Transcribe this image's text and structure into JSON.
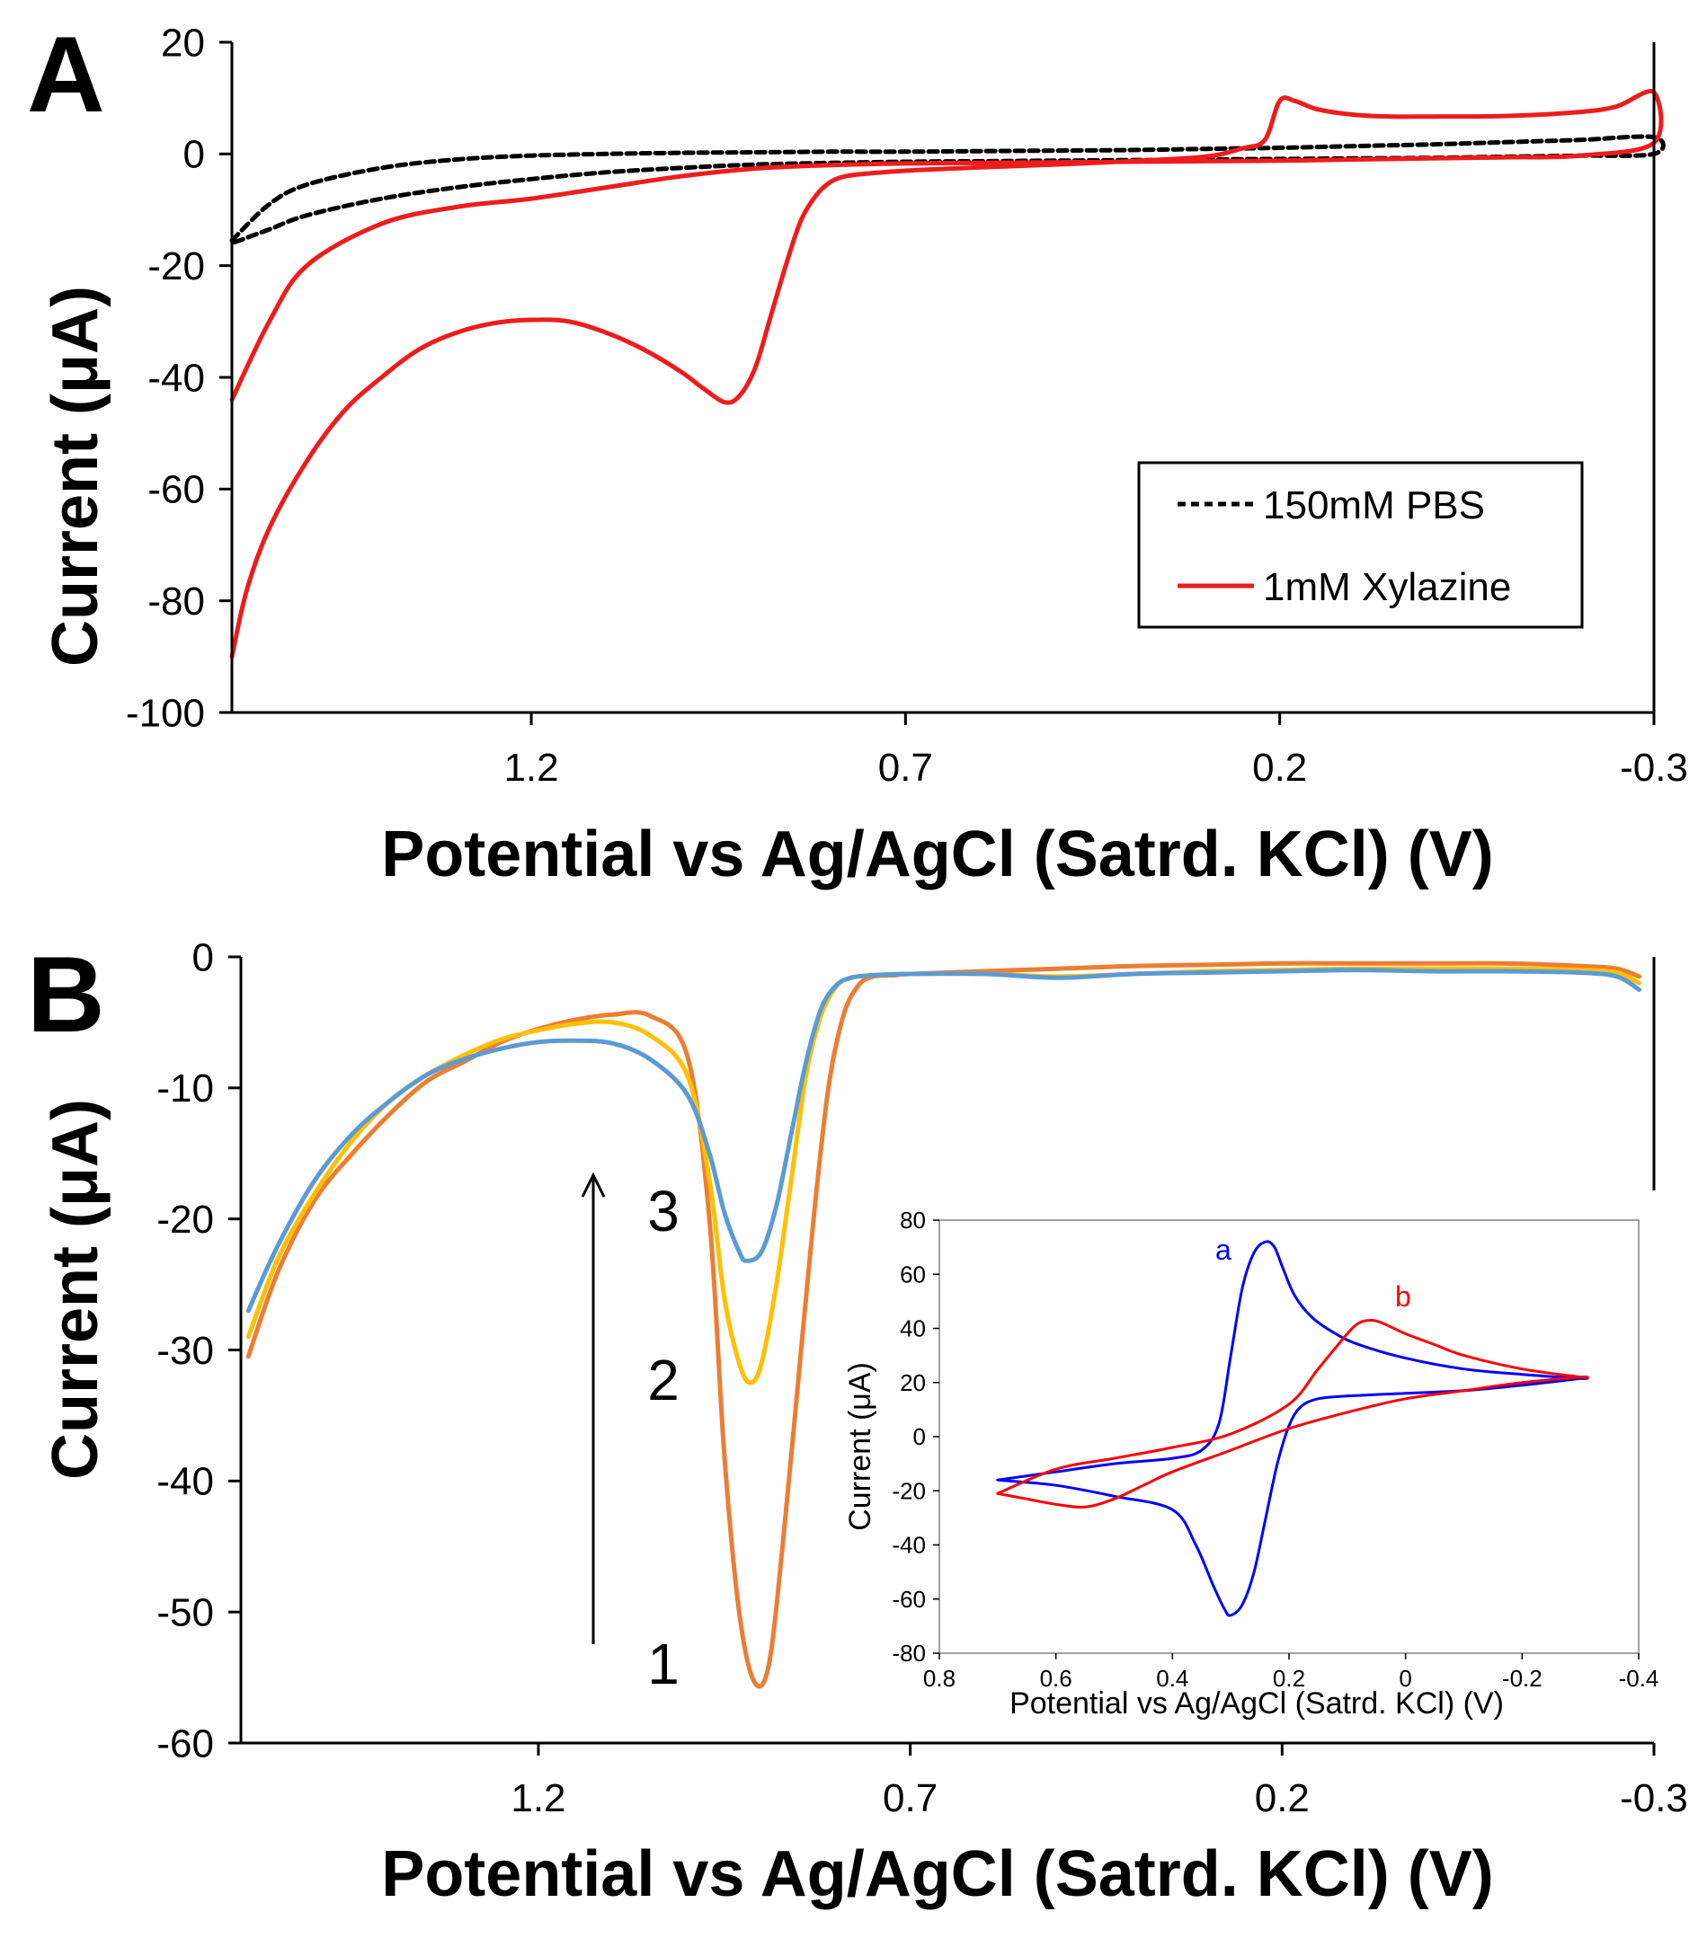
{
  "chart_data": [
    {
      "id": "A",
      "type": "line",
      "panel_label": "A",
      "xlabel": "Potential vs Ag/AgCl (Satrd. KCl) (V)",
      "ylabel": "Current (μA)",
      "xlim": [
        1.6,
        -0.3
      ],
      "ylim": [
        -100,
        20
      ],
      "x_ticks": [
        1.2,
        0.7,
        0.2,
        -0.3
      ],
      "x_tick_labels": [
        "1.2",
        "0.7",
        "0.2",
        "-0.3"
      ],
      "y_ticks": [
        20,
        0,
        -20,
        -40,
        -60,
        -80,
        -100
      ],
      "y_tick_labels": [
        "20",
        "0",
        "-20",
        "-40",
        "-60",
        "-80",
        "-100"
      ],
      "legend": {
        "placement": "bottom-right",
        "entries": [
          "150mM PBS",
          "1mM Xylazine"
        ]
      },
      "series": [
        {
          "name": "150mM PBS",
          "color": "#000000",
          "dash": "dashed",
          "x": [
            1.6,
            1.55,
            1.5,
            1.4,
            1.3,
            1.2,
            1.1,
            1.0,
            0.9,
            0.8,
            0.7,
            0.6,
            0.5,
            0.4,
            0.3,
            0.2,
            0.1,
            0.0,
            -0.1,
            -0.2,
            -0.3,
            -0.3,
            -0.2,
            -0.1,
            0.0,
            0.1,
            0.2,
            0.3,
            0.4,
            0.5,
            0.6,
            0.7,
            0.8,
            0.9,
            1.0,
            1.1,
            1.2,
            1.3,
            1.4,
            1.5,
            1.55,
            1.6
          ],
          "y": [
            -15.5,
            -9,
            -5.5,
            -2.5,
            -1,
            -0.3,
            0,
            0.2,
            0.3,
            0.4,
            0.4,
            0.5,
            0.6,
            0.7,
            0.9,
            1.1,
            1.4,
            1.7,
            2.1,
            2.5,
            3,
            0,
            -0.3,
            -0.5,
            -0.7,
            -0.8,
            -0.9,
            -1,
            -1.1,
            -1.2,
            -1.3,
            -1.4,
            -1.6,
            -1.9,
            -2.5,
            -3.3,
            -4.5,
            -6,
            -8,
            -11,
            -13.5,
            -16
          ]
        },
        {
          "name": "1mM Xylazine",
          "color": "#ee1c1c",
          "dash": "solid",
          "x": [
            1.6,
            1.58,
            1.55,
            1.5,
            1.45,
            1.4,
            1.35,
            1.3,
            1.25,
            1.2,
            1.15,
            1.1,
            1.05,
            1.0,
            0.97,
            0.94,
            0.92,
            0.9,
            0.88,
            0.86,
            0.84,
            0.82,
            0.8,
            0.78,
            0.75,
            0.7,
            0.6,
            0.5,
            0.4,
            0.3,
            0.25,
            0.22,
            0.2,
            0.18,
            0.15,
            0.1,
            0.05,
            0.0,
            -0.1,
            -0.2,
            -0.25,
            -0.3,
            -0.3,
            -0.2,
            -0.1,
            0.0,
            0.1,
            0.2,
            0.3,
            0.4,
            0.5,
            0.6,
            0.7,
            0.8,
            0.9,
            1.0,
            1.1,
            1.2,
            1.3,
            1.4,
            1.5,
            1.55,
            1.6
          ],
          "y": [
            -90,
            -78,
            -67,
            -55,
            -46,
            -40,
            -35,
            -32,
            -30.3,
            -29.7,
            -30,
            -32,
            -35,
            -39,
            -42,
            -44.5,
            -43,
            -38,
            -29,
            -20,
            -12,
            -7.5,
            -5,
            -4,
            -3.5,
            -3,
            -2.4,
            -1.9,
            -1.3,
            -0.5,
            1,
            2.5,
            9.5,
            9.5,
            8,
            7,
            6.7,
            6.7,
            6.8,
            7.5,
            8.5,
            11,
            2,
            -0.3,
            -0.6,
            -0.8,
            -1,
            -1.2,
            -1.3,
            -1.4,
            -1.5,
            -1.6,
            -1.7,
            -2,
            -2.6,
            -4,
            -6,
            -8,
            -9.5,
            -12.5,
            -20,
            -30,
            -44
          ]
        }
      ]
    },
    {
      "id": "B",
      "type": "line",
      "panel_label": "B",
      "xlabel": "Potential vs Ag/AgCl (Satrd. KCl) (V)",
      "ylabel": "Current (μA)",
      "xlim": [
        1.6,
        -0.3
      ],
      "ylim": [
        -60,
        0
      ],
      "x_ticks": [
        1.2,
        0.7,
        0.2,
        -0.3
      ],
      "x_tick_labels": [
        "1.2",
        "0.7",
        "0.2",
        "-0.3"
      ],
      "y_ticks": [
        0,
        -10,
        -20,
        -30,
        -40,
        -50,
        -60
      ],
      "y_tick_labels": [
        "0",
        "-10",
        "-20",
        "-30",
        "-40",
        "-50",
        "-60"
      ],
      "annotations": [
        {
          "text": "1",
          "x": 1.0,
          "y": -55
        },
        {
          "text": "2",
          "x": 1.0,
          "y": -32.5
        },
        {
          "text": "3",
          "x": 1.0,
          "y": -19.5
        },
        {
          "text": "arrow",
          "x": 1.07,
          "y_from": -53,
          "y_to": -17
        }
      ],
      "series": [
        {
          "name": "1",
          "color": "#ed7d31",
          "x": [
            1.59,
            1.55,
            1.5,
            1.45,
            1.4,
            1.35,
            1.3,
            1.25,
            1.2,
            1.15,
            1.1,
            1.05,
            1.0,
            0.97,
            0.95,
            0.93,
            0.91,
            0.89,
            0.87,
            0.85,
            0.83,
            0.81,
            0.79,
            0.77,
            0.75,
            0.72,
            0.7,
            0.6,
            0.5,
            0.4,
            0.3,
            0.2,
            0.1,
            0.0,
            -0.1,
            -0.2,
            -0.25,
            -0.28
          ],
          "y": [
            -30.5,
            -24,
            -18.5,
            -15,
            -12,
            -9.5,
            -8,
            -6.5,
            -5.5,
            -4.8,
            -4.4,
            -4.5,
            -7.5,
            -20,
            -38,
            -50,
            -55.3,
            -54,
            -44,
            -32,
            -20,
            -10,
            -4.5,
            -2.2,
            -1.5,
            -1.4,
            -1.3,
            -1.1,
            -0.9,
            -0.7,
            -0.6,
            -0.5,
            -0.5,
            -0.5,
            -0.5,
            -0.7,
            -0.9,
            -1.5
          ]
        },
        {
          "name": "2",
          "color": "#ffc000",
          "x": [
            1.59,
            1.55,
            1.5,
            1.45,
            1.4,
            1.35,
            1.3,
            1.25,
            1.2,
            1.15,
            1.1,
            1.05,
            1.0,
            0.97,
            0.95,
            0.93,
            0.915,
            0.9,
            0.88,
            0.86,
            0.84,
            0.82,
            0.8,
            0.78,
            0.75,
            0.7,
            0.6,
            0.5,
            0.4,
            0.3,
            0.2,
            0.1,
            0.0,
            -0.1,
            -0.2,
            -0.25,
            -0.28
          ],
          "y": [
            -29,
            -23,
            -18,
            -14,
            -11,
            -9,
            -7.5,
            -6.3,
            -5.6,
            -5.1,
            -5,
            -6,
            -9,
            -17,
            -26,
            -31,
            -32.5,
            -31,
            -25,
            -17,
            -9,
            -4.5,
            -2.3,
            -1.6,
            -1.4,
            -1.3,
            -1.3,
            -1.5,
            -1.3,
            -1.1,
            -1.0,
            -0.9,
            -0.9,
            -0.9,
            -1.0,
            -1.2,
            -2
          ]
        },
        {
          "name": "3",
          "color": "#5b9bd5",
          "x": [
            1.59,
            1.55,
            1.5,
            1.45,
            1.4,
            1.35,
            1.3,
            1.25,
            1.2,
            1.15,
            1.1,
            1.05,
            1.0,
            0.97,
            0.95,
            0.93,
            0.92,
            0.9,
            0.88,
            0.86,
            0.84,
            0.82,
            0.8,
            0.78,
            0.75,
            0.7,
            0.6,
            0.5,
            0.4,
            0.3,
            0.2,
            0.1,
            0.0,
            -0.1,
            -0.2,
            -0.25,
            -0.28
          ],
          "y": [
            -27,
            -22,
            -17,
            -13.5,
            -11,
            -9,
            -7.8,
            -7,
            -6.5,
            -6.4,
            -6.6,
            -7.8,
            -10.5,
            -15,
            -19.5,
            -22.5,
            -23.2,
            -22.5,
            -19,
            -13.5,
            -8,
            -4,
            -2.2,
            -1.6,
            -1.4,
            -1.3,
            -1.3,
            -1.6,
            -1.3,
            -1.2,
            -1.1,
            -1.0,
            -1.1,
            -1.1,
            -1.2,
            -1.5,
            -2.5
          ]
        }
      ]
    },
    {
      "id": "B-inset",
      "type": "line",
      "xlabel": "Potential vs Ag/AgCl (Satrd. KCl) (V)",
      "ylabel": "Current (μA)",
      "xlim": [
        0.8,
        -0.4
      ],
      "ylim": [
        -80,
        80
      ],
      "x_ticks": [
        0.8,
        0.6,
        0.4,
        0.2,
        0,
        -0.2,
        -0.4
      ],
      "x_tick_labels": [
        "0.8",
        "0.6",
        "0.4",
        "0.2",
        "0",
        "-0.2",
        "-0.4"
      ],
      "y_ticks": [
        80,
        60,
        40,
        20,
        0,
        -20,
        -40,
        -60,
        -80
      ],
      "y_tick_labels": [
        "80",
        "60",
        "40",
        "20",
        "0",
        "-20",
        "-40",
        "-60",
        "-80"
      ],
      "series": [
        {
          "name": "a",
          "color": "#0000ff",
          "x": [
            0.7,
            0.6,
            0.5,
            0.4,
            0.35,
            0.32,
            0.3,
            0.28,
            0.26,
            0.24,
            0.225,
            0.21,
            0.19,
            0.16,
            0.12,
            0.08,
            0.0,
            -0.1,
            -0.2,
            -0.3,
            -0.3,
            -0.2,
            -0.1,
            0.0,
            0.1,
            0.15,
            0.18,
            0.2,
            0.22,
            0.24,
            0.26,
            0.28,
            0.3,
            0.31,
            0.33,
            0.36,
            0.4,
            0.5,
            0.6,
            0.7
          ],
          "y": [
            -16,
            -13,
            -10,
            -8,
            -5,
            5,
            30,
            55,
            68,
            72,
            70,
            62,
            52,
            44,
            38,
            34,
            29,
            25,
            23,
            21.5,
            21.5,
            19,
            17,
            16,
            15,
            14,
            11,
            4,
            -10,
            -30,
            -50,
            -62,
            -66,
            -64,
            -55,
            -40,
            -27,
            -22,
            -18,
            -16
          ]
        },
        {
          "name": "b",
          "color": "#ff0000",
          "x": [
            0.7,
            0.6,
            0.5,
            0.4,
            0.3,
            0.2,
            0.15,
            0.1,
            0.08,
            0.06,
            0.04,
            0.0,
            -0.05,
            -0.1,
            -0.2,
            -0.3,
            -0.3,
            -0.2,
            -0.1,
            0.0,
            0.1,
            0.2,
            0.3,
            0.4,
            0.45,
            0.5,
            0.55,
            0.6,
            0.65,
            0.7
          ],
          "y": [
            -21,
            -12,
            -8,
            -4,
            1,
            12,
            25,
            38,
            42,
            43,
            42,
            38,
            34,
            30,
            25,
            22,
            22,
            20,
            17,
            14,
            9,
            3,
            -5,
            -13,
            -18,
            -23,
            -26,
            -25,
            -23,
            -21
          ]
        }
      ],
      "annotations": [
        {
          "text": "a",
          "x": 0.32,
          "y": 63,
          "color": "#0000ff"
        },
        {
          "text": "b",
          "x": -0.02,
          "y": 45,
          "color": "#ff0000"
        }
      ]
    }
  ]
}
